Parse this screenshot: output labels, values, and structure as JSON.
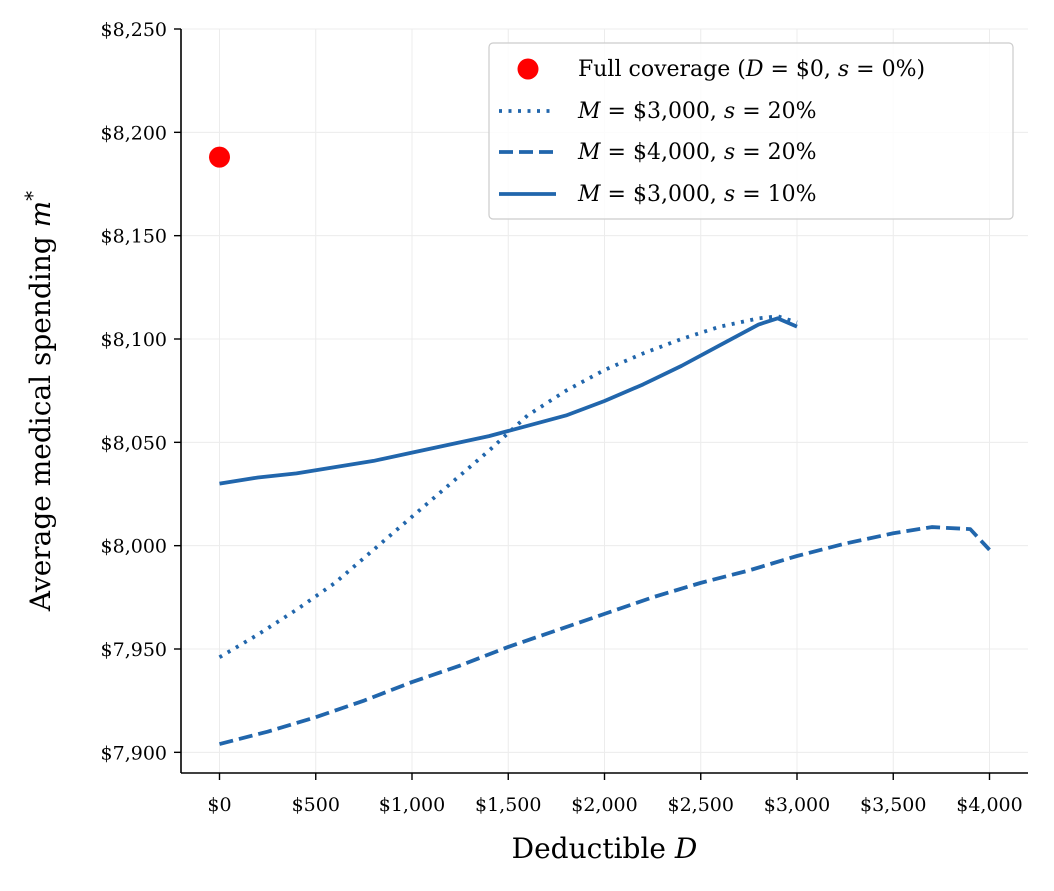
{
  "chart_data": {
    "type": "line",
    "xlabel": "Deductible D",
    "ylabel": "Average medical spending m*",
    "xlim": [
      -200,
      4200
    ],
    "ylim": [
      7890,
      8250
    ],
    "x_ticks": [
      0,
      500,
      1000,
      1500,
      2000,
      2500,
      3000,
      3500,
      4000
    ],
    "x_tick_labels": [
      "$0",
      "$500",
      "$1,000",
      "$1,500",
      "$2,000",
      "$2,500",
      "$3,000",
      "$3,500",
      "$4,000"
    ],
    "y_ticks": [
      7900,
      7950,
      8000,
      8050,
      8100,
      8150,
      8200,
      8250
    ],
    "y_tick_labels": [
      "$7,900",
      "$7,950",
      "$8,000",
      "$8,050",
      "$8,100",
      "$8,150",
      "$8,200",
      "$8,250"
    ],
    "grid": true,
    "legend_position": "top-right",
    "colors": {
      "series": "#2166ac",
      "point": "#ff0000"
    },
    "point": {
      "name": "Full coverage (D = $0, s = 0%)",
      "x": 0,
      "y": 8188,
      "color": "#ff0000"
    },
    "series": [
      {
        "name": "M = $3,000, s = 20%",
        "style": "dotted",
        "x": [
          0,
          200,
          400,
          600,
          800,
          1000,
          1200,
          1400,
          1600,
          1800,
          2000,
          2200,
          2400,
          2600,
          2800,
          2900,
          3000
        ],
        "y": [
          7946,
          7957,
          7969,
          7982,
          7998,
          8014,
          8030,
          8046,
          8063,
          8075,
          8085,
          8093,
          8100,
          8106,
          8110,
          8111,
          8108
        ]
      },
      {
        "name": "M = $4,000, s = 20%",
        "style": "dashed",
        "x": [
          0,
          250,
          500,
          750,
          1000,
          1250,
          1500,
          1750,
          2000,
          2250,
          2500,
          2750,
          3000,
          3250,
          3500,
          3700,
          3900,
          4000
        ],
        "y": [
          7904,
          7910,
          7917,
          7925,
          7934,
          7942,
          7951,
          7959,
          7967,
          7975,
          7982,
          7988,
          7995,
          8001,
          8006,
          8009,
          8008,
          7998
        ]
      },
      {
        "name": "M = $3,000, s = 10%",
        "style": "solid",
        "x": [
          0,
          200,
          400,
          600,
          800,
          1000,
          1200,
          1400,
          1600,
          1800,
          2000,
          2200,
          2400,
          2600,
          2800,
          2900,
          3000
        ],
        "y": [
          8030,
          8033,
          8035,
          8038,
          8041,
          8045,
          8049,
          8053,
          8058,
          8063,
          8070,
          8078,
          8087,
          8097,
          8107,
          8110,
          8106
        ]
      }
    ]
  }
}
